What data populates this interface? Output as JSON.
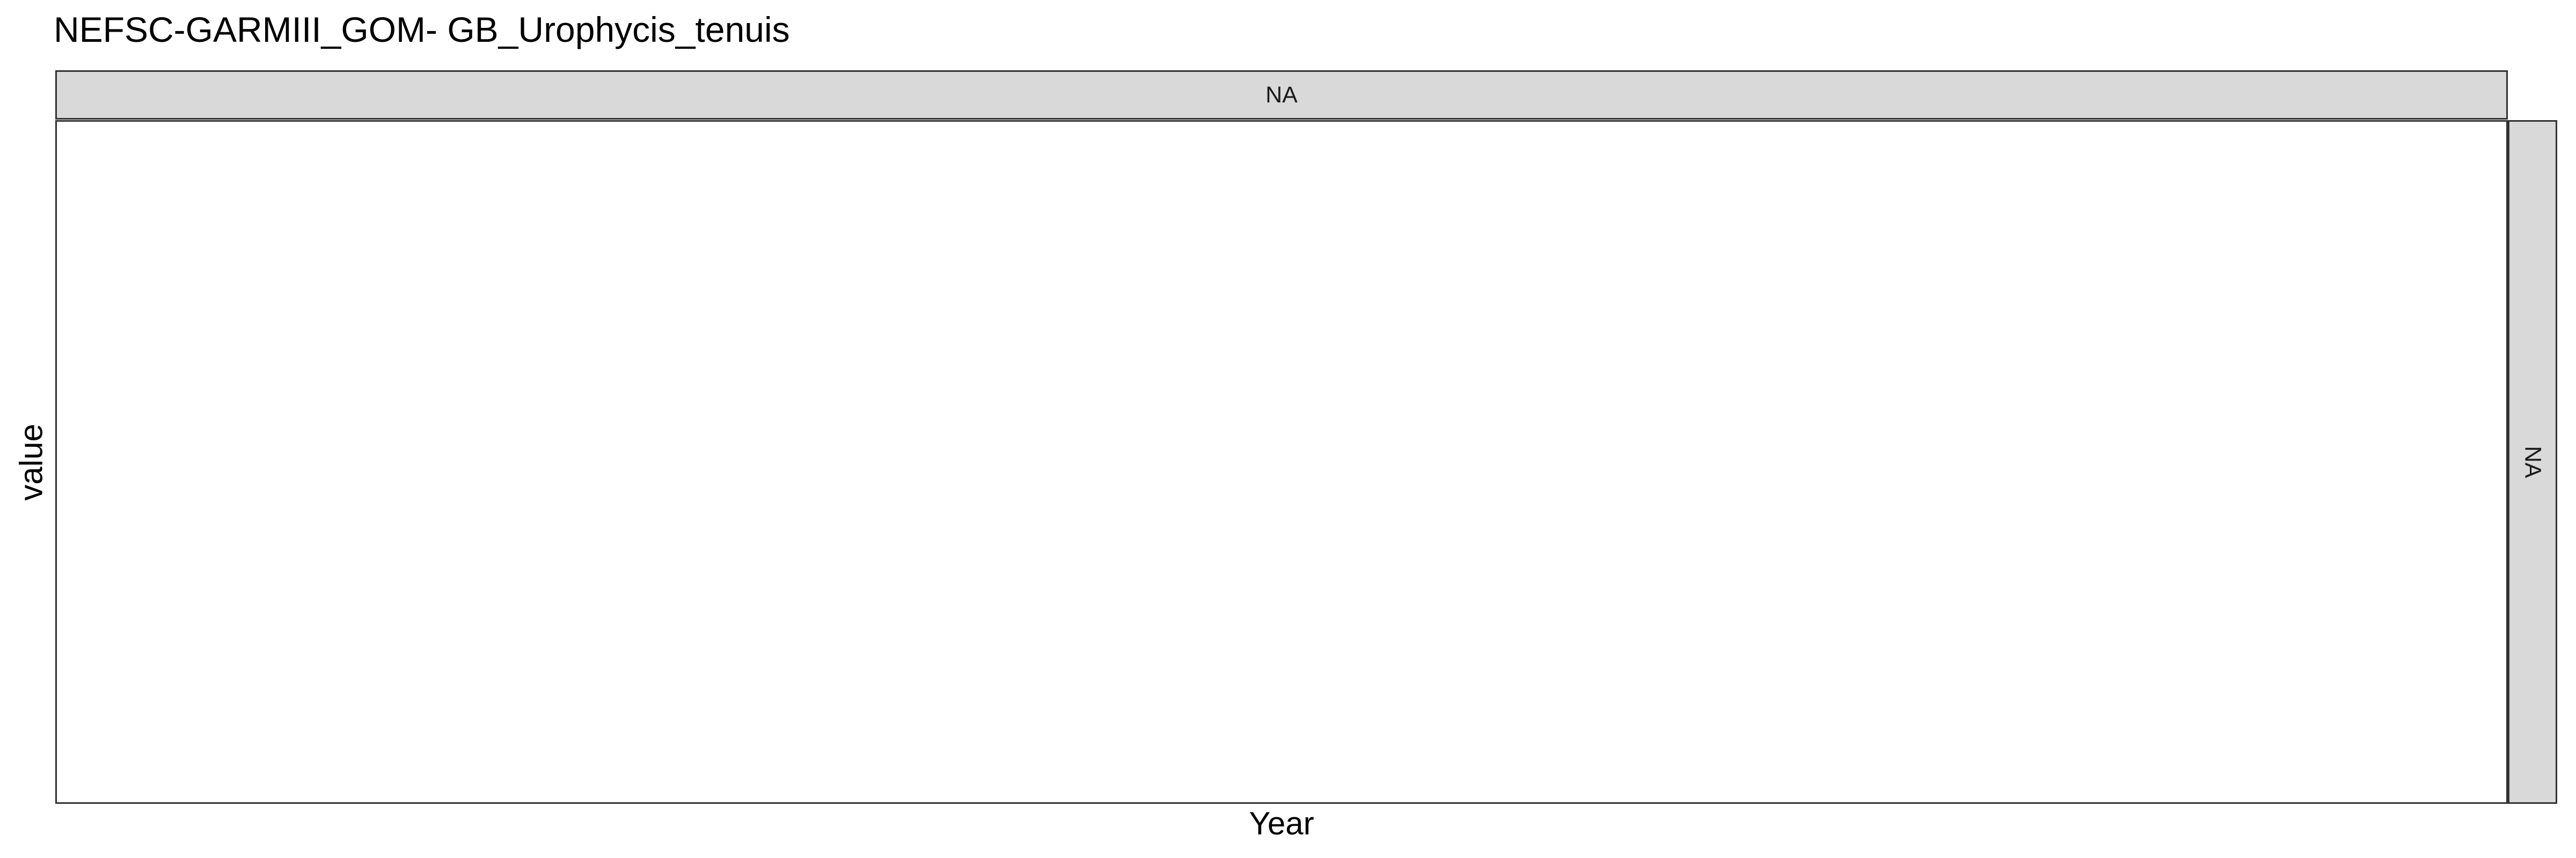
{
  "chart_data": {
    "type": "line",
    "title": "NEFSC-GARMIII_GOM- GB_Urophycis_tenuis",
    "xlabel": "Year",
    "ylabel": "value",
    "facet_top_label": "NA",
    "facet_right_label": "NA",
    "series": [],
    "grid": false,
    "legend": "none"
  }
}
